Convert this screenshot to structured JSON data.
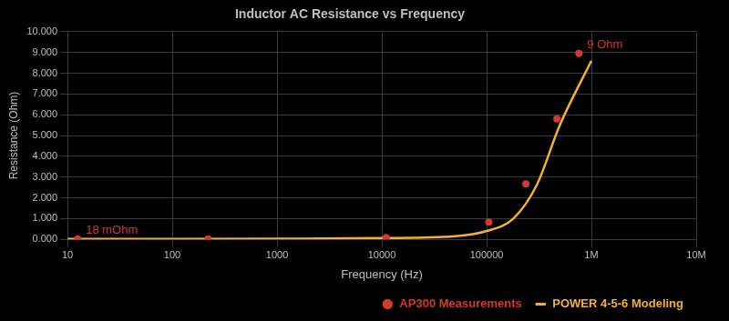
{
  "chart_data": {
    "type": "line",
    "title": "Inductor AC Resistance vs Frequency",
    "x_label": "Frequency (Hz)",
    "y_label": "Resistance (Ohm)",
    "log": "x",
    "grid": true,
    "legend": "bottom-right",
    "xlim": [
      10,
      10000000
    ],
    "xticks": [
      10,
      100,
      1000,
      10000,
      100000,
      {
        "value": 1000000,
        "label": "1M"
      },
      {
        "value": 10000000,
        "label": "10M"
      }
    ],
    "ylim": [
      0,
      10
    ],
    "yticks": [
      {
        "value": 0,
        "label": "0.000"
      },
      {
        "value": 1,
        "label": "1.000"
      },
      {
        "value": 2,
        "label": "2.000"
      },
      {
        "value": 3,
        "label": "3.000"
      },
      {
        "value": 4,
        "label": "4.000"
      },
      {
        "value": 5,
        "label": "5.000"
      },
      {
        "value": 6,
        "label": "6.000"
      },
      {
        "value": 7,
        "label": "7.000"
      },
      {
        "value": 8,
        "label": "8.000"
      },
      {
        "value": 9,
        "label": "9.000"
      },
      {
        "value": 10,
        "label": "10.000"
      }
    ],
    "series": [
      {
        "name": "AP300 Measurements",
        "type": "scatter",
        "marker": "circle",
        "color": "#d43a2c",
        "x": [
          12.5,
          220,
          11000,
          105000,
          237000,
          468000,
          760000
        ],
        "values": [
          0.018,
          0.02,
          0.09,
          0.83,
          2.67,
          5.8,
          8.95
        ]
      },
      {
        "name": "POWER 4-5-6 Modeling",
        "type": "line",
        "line_style": "solid",
        "color": "#f2b134",
        "x": [
          10,
          100,
          1000,
          10000,
          50000,
          100000,
          180000,
          300000,
          500000,
          1000000
        ],
        "values": [
          0.018,
          0.02,
          0.03,
          0.06,
          0.15,
          0.4,
          1.0,
          2.6,
          5.5,
          8.6
        ]
      }
    ],
    "annotations": [
      {
        "text": "18 mOhm",
        "x": 12.5,
        "y": 0.018,
        "color": "#d43a2c"
      },
      {
        "text": "9 Ohm",
        "x": 760000,
        "y": 8.95,
        "color": "#d43a2c"
      }
    ]
  }
}
